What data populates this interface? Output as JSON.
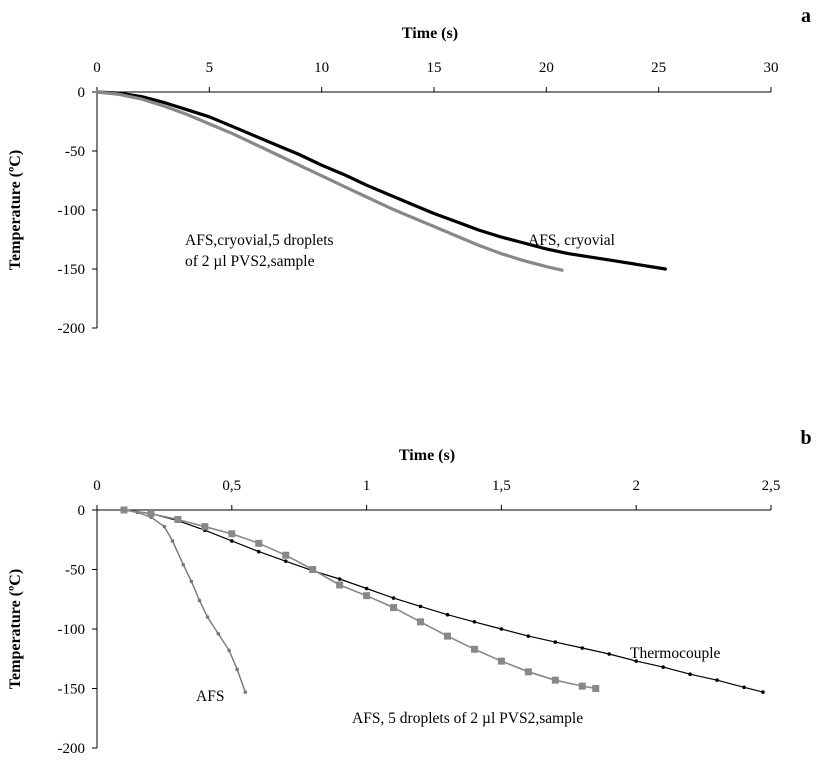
{
  "chart_data": [
    {
      "panel": "a",
      "type": "line",
      "xlabel": "Time (s)",
      "ylabel": "Temperature  (ºC)",
      "xlim": [
        0,
        30
      ],
      "ylim": [
        -200,
        0
      ],
      "xticks": [
        "0",
        "5",
        "10",
        "15",
        "20",
        "25",
        "30"
      ],
      "yticks": [
        "0",
        "-50",
        "-100",
        "-150",
        "-200"
      ],
      "grid": false,
      "x_axis_position": "top",
      "series": [
        {
          "name": "AFS, cryovial",
          "color": "#000000",
          "x": [
            0,
            1,
            2,
            3,
            4,
            5,
            6,
            7,
            8,
            9,
            10,
            11,
            12,
            13,
            14,
            15,
            16,
            17,
            18,
            19,
            20,
            21,
            22,
            23,
            24,
            25.3
          ],
          "y": [
            0,
            -1,
            -4,
            -9,
            -15,
            -21,
            -29,
            -37,
            -45,
            -53,
            -62,
            -70,
            -79,
            -87,
            -95,
            -103,
            -110,
            -117,
            -123,
            -128,
            -133,
            -137,
            -140,
            -143,
            -146,
            -150
          ]
        },
        {
          "name": "AFS,cryovial,5 droplets of 2 µl PVS2,sample",
          "color": "#888888",
          "x": [
            0,
            1,
            2,
            3,
            4,
            5,
            6,
            7,
            8,
            9,
            10,
            11,
            12,
            13,
            14,
            15,
            16,
            17,
            18,
            19,
            20,
            20.7
          ],
          "y": [
            0,
            -2,
            -6,
            -12,
            -19,
            -27,
            -35,
            -44,
            -53,
            -62,
            -71,
            -80,
            -89,
            -98,
            -106,
            -114,
            -122,
            -130,
            -137,
            -143,
            -148,
            -151
          ]
        }
      ],
      "annotations": [
        {
          "lines": [
            "AFS,cryovial,5 droplets",
            "of 2 µl PVS2,sample"
          ]
        },
        {
          "lines": [
            "AFS, cryovial"
          ]
        }
      ]
    },
    {
      "panel": "b",
      "type": "line",
      "xlabel": "Time (s)",
      "ylabel": "Temperature  (ºC)",
      "xlim": [
        0,
        2.5
      ],
      "ylim": [
        -200,
        0
      ],
      "xticks": [
        "0",
        "0,5",
        "1",
        "1,5",
        "2",
        "2,5"
      ],
      "yticks": [
        "0",
        "-50",
        "-100",
        "-150",
        "-200"
      ],
      "grid": false,
      "x_axis_position": "top",
      "series": [
        {
          "name": "AFS",
          "color": "#777777",
          "marker": "dot",
          "x": [
            0.1,
            0.15,
            0.2,
            0.25,
            0.28,
            0.32,
            0.35,
            0.38,
            0.41,
            0.45,
            0.49,
            0.52,
            0.55
          ],
          "y": [
            0,
            -2,
            -6,
            -14,
            -26,
            -46,
            -60,
            -76,
            -90,
            -104,
            -118,
            -134,
            -153
          ]
        },
        {
          "name": "Thermocouple",
          "color": "#000000",
          "marker": "dot",
          "x": [
            0.1,
            0.2,
            0.3,
            0.4,
            0.5,
            0.6,
            0.7,
            0.8,
            0.9,
            1.0,
            1.1,
            1.2,
            1.3,
            1.4,
            1.5,
            1.6,
            1.7,
            1.8,
            1.9,
            2.0,
            2.1,
            2.2,
            2.3,
            2.4,
            2.47
          ],
          "y": [
            0,
            -3,
            -9,
            -17,
            -26,
            -35,
            -43,
            -51,
            -58,
            -66,
            -74,
            -81,
            -88,
            -94,
            -100,
            -106,
            -111,
            -116,
            -121,
            -127,
            -132,
            -138,
            -143,
            -149,
            -153
          ]
        },
        {
          "name": "AFS, 5 droplets of 2 µl PVS2,sample",
          "color": "#888888",
          "marker": "square",
          "x": [
            0.1,
            0.2,
            0.3,
            0.4,
            0.5,
            0.6,
            0.7,
            0.8,
            0.9,
            1.0,
            1.1,
            1.2,
            1.3,
            1.4,
            1.5,
            1.6,
            1.7,
            1.8,
            1.85
          ],
          "y": [
            0,
            -3,
            -8,
            -14,
            -20,
            -28,
            -38,
            -50,
            -63,
            -72,
            -82,
            -94,
            -106,
            -117,
            -127,
            -136,
            -143,
            -148,
            -150
          ]
        }
      ],
      "annotations": [
        {
          "lines": [
            "AFS"
          ]
        },
        {
          "lines": [
            "Thermocouple"
          ]
        },
        {
          "lines": [
            "AFS, 5 droplets of 2 µl PVS2,sample"
          ]
        }
      ]
    }
  ]
}
